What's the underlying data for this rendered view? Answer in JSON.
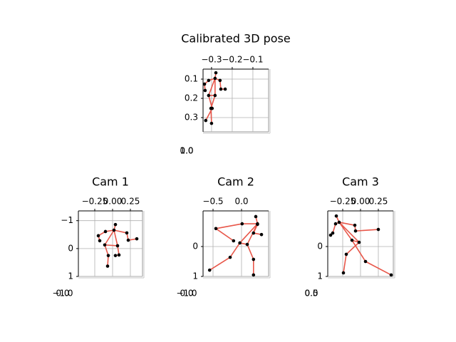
{
  "chart_data": [
    {
      "type": "scatter",
      "title": "Calibrated 3D pose",
      "grid": true,
      "yinvert": true,
      "xlim": [
        -0.341,
        -0.024
      ],
      "ylim": [
        0.048,
        0.374
      ],
      "xticks": [
        {
          "value": -0.3,
          "label": "−0.3"
        },
        {
          "value": -0.2,
          "label": "−0.2"
        },
        {
          "value": -0.1,
          "label": "−0.1"
        }
      ],
      "yticks": [
        0.1,
        0.2,
        0.3
      ],
      "zticks": [
        {
          "value": 1,
          "label": "1.0"
        },
        {
          "value": 0,
          "label": "0.0"
        }
      ],
      "series": [
        {
          "style": "line",
          "color": "#e8574a",
          "x": [
            -0.331,
            -0.334,
            -0.314,
            -0.283,
            -0.259,
            -0.255,
            -0.234,
            null,
            -0.279,
            -0.283,
            -0.314,
            -0.297,
            -0.328,
            null,
            -0.283,
            -0.283,
            -0.303,
            -0.3,
            null,
            -0.314,
            -0.283
          ],
          "values": [
            0.159,
            0.126,
            0.107,
            0.096,
            0.107,
            0.152,
            0.152,
            null,
            0.067,
            0.096,
            0.185,
            0.252,
            0.315,
            null,
            0.096,
            0.185,
            0.252,
            0.33,
            null,
            0.185,
            0.185
          ]
        },
        {
          "style": "point",
          "color": "#000000",
          "x": [
            -0.279,
            -0.283,
            -0.314,
            -0.334,
            -0.331,
            -0.259,
            -0.255,
            -0.234,
            -0.314,
            -0.283,
            -0.297,
            -0.328,
            -0.303,
            -0.3
          ],
          "values": [
            0.067,
            0.096,
            0.107,
            0.126,
            0.159,
            0.107,
            0.152,
            0.152,
            0.185,
            0.185,
            0.252,
            0.315,
            0.252,
            0.33
          ]
        }
      ]
    },
    {
      "type": "scatter",
      "title": "Cam 1",
      "grid": true,
      "yinvert": true,
      "xlim": [
        -0.48,
        0.42
      ],
      "ylim": [
        -1.35,
        1.0
      ],
      "xticks": [
        {
          "value": -0.25,
          "label": "−0.25"
        },
        {
          "value": 0,
          "label": "0.00"
        },
        0.25
      ],
      "yticks": [
        {
          "value": -1,
          "label": "−1"
        },
        0,
        1
      ],
      "zticks": [
        {
          "value": -1,
          "label": "−1.0"
        },
        {
          "value": 0,
          "label": "0.0"
        }
      ],
      "series": [
        {
          "style": "line",
          "color": "#e8574a",
          "x": [
            -0.18,
            -0.2,
            -0.1,
            0.02,
            0.2,
            0.22,
            0.34,
            null,
            0.04,
            0.02,
            -0.11,
            -0.06,
            -0.07,
            null,
            0.02,
            0.07,
            0.09,
            0.04,
            null,
            -0.11,
            0.07
          ],
          "values": [
            -0.28,
            -0.46,
            -0.61,
            -0.66,
            -0.56,
            -0.3,
            -0.35,
            null,
            -0.86,
            -0.66,
            -0.13,
            0.25,
            0.63,
            null,
            -0.66,
            -0.1,
            0.23,
            0.25,
            null,
            -0.13,
            -0.1
          ]
        },
        {
          "style": "point",
          "color": "#000000",
          "x": [
            0.04,
            0.02,
            -0.1,
            -0.2,
            -0.18,
            0.2,
            0.22,
            0.34,
            -0.11,
            0.07,
            -0.06,
            -0.07,
            0.09,
            0.04
          ],
          "values": [
            -0.86,
            -0.66,
            -0.61,
            -0.46,
            -0.28,
            -0.56,
            -0.3,
            -0.35,
            -0.13,
            -0.1,
            0.25,
            0.63,
            0.23,
            0.25
          ]
        }
      ]
    },
    {
      "type": "scatter",
      "title": "Cam 2",
      "grid": true,
      "yinvert": true,
      "xlim": [
        -0.675,
        0.475
      ],
      "ylim": [
        -1.19,
        1.0
      ],
      "xticks": [
        {
          "value": -0.5,
          "label": "−0.5"
        },
        {
          "value": 0,
          "label": "0.0"
        }
      ],
      "yticks": [
        0,
        1
      ],
      "zticks": [
        {
          "value": -1,
          "label": "−1.0"
        },
        {
          "value": 0,
          "label": "0.0"
        }
      ],
      "series": [
        {
          "style": "line",
          "color": "#e8574a",
          "x": [
            -0.14,
            -0.45,
            0.01,
            0.28,
            0.28,
            0.21,
            0.35,
            null,
            0.25,
            0.28,
            -0.03,
            -0.2,
            -0.56,
            null,
            0.28,
            0.1,
            0.21,
            0.21,
            null,
            -0.03,
            0.1
          ],
          "values": [
            -0.19,
            -0.6,
            -0.76,
            -0.76,
            -0.74,
            -0.45,
            -0.4,
            null,
            -1.0,
            -0.76,
            -0.12,
            0.36,
            0.79,
            null,
            -0.76,
            -0.07,
            0.43,
            0.95,
            null,
            -0.12,
            -0.07
          ]
        },
        {
          "style": "point",
          "color": "#000000",
          "x": [
            0.25,
            0.28,
            0.01,
            -0.45,
            -0.14,
            0.28,
            0.21,
            0.35,
            -0.03,
            0.1,
            -0.2,
            -0.56,
            0.21,
            0.21
          ],
          "values": [
            -1.0,
            -0.76,
            -0.76,
            -0.6,
            -0.19,
            -0.74,
            -0.45,
            -0.4,
            -0.12,
            -0.07,
            0.36,
            0.79,
            0.43,
            0.95
          ]
        }
      ]
    },
    {
      "type": "scatter",
      "title": "Cam 3",
      "grid": true,
      "yinvert": true,
      "xlim": [
        -0.46,
        0.46
      ],
      "ylim": [
        -1.19,
        1.0
      ],
      "xticks": [
        {
          "value": -0.25,
          "label": "−0.25"
        },
        {
          "value": 0,
          "label": "0.00"
        },
        0.25
      ],
      "yticks": [
        0,
        1
      ],
      "zticks": [
        0.5,
        {
          "value": 0,
          "label": "0.0"
        }
      ],
      "series": [
        {
          "style": "line",
          "color": "#e8574a",
          "x": [
            -0.42,
            -0.39,
            -0.35,
            -0.3,
            -0.08,
            -0.07,
            0.25,
            null,
            -0.34,
            -0.3,
            -0.12,
            0.07,
            0.43,
            null,
            -0.3,
            -0.02,
            -0.2,
            -0.24,
            null,
            -0.12,
            -0.02
          ],
          "values": [
            -0.38,
            -0.45,
            -0.76,
            -0.81,
            -0.71,
            -0.52,
            -0.57,
            null,
            -1.02,
            -0.81,
            -0.21,
            0.5,
            0.95,
            null,
            -0.81,
            -0.14,
            0.26,
            0.88,
            null,
            -0.21,
            -0.14
          ]
        },
        {
          "style": "point",
          "color": "#000000",
          "x": [
            -0.34,
            -0.3,
            -0.35,
            -0.39,
            -0.42,
            -0.08,
            -0.07,
            0.25,
            -0.12,
            -0.02,
            0.07,
            0.43,
            -0.2,
            -0.24
          ],
          "values": [
            -1.02,
            -0.81,
            -0.76,
            -0.45,
            -0.38,
            -0.71,
            -0.52,
            -0.57,
            -0.21,
            -0.14,
            0.5,
            0.95,
            0.26,
            0.88
          ]
        }
      ]
    }
  ]
}
